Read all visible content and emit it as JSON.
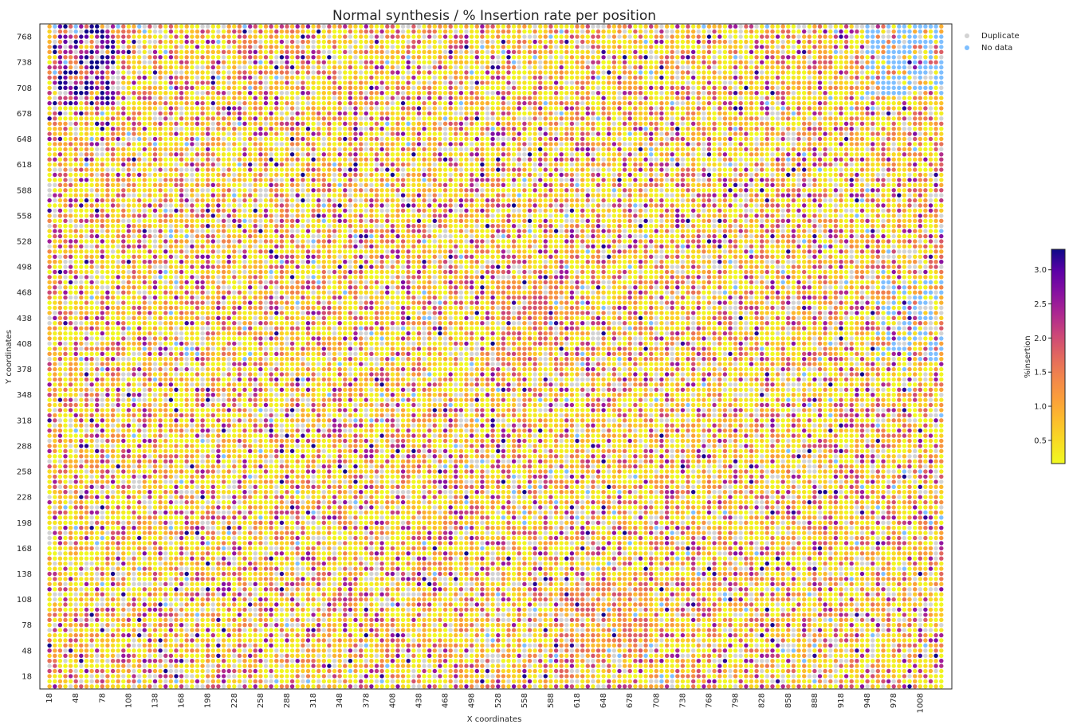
{
  "chart_data": {
    "type": "scatter",
    "title": "Normal synthesis / % Insertion rate per position",
    "xlabel": "X coordinates",
    "ylabel": "Y coordinates",
    "x_ticks": [
      18,
      48,
      78,
      108,
      138,
      168,
      198,
      228,
      258,
      288,
      318,
      348,
      378,
      408,
      438,
      468,
      498,
      528,
      558,
      588,
      618,
      648,
      678,
      708,
      738,
      768,
      798,
      828,
      858,
      888,
      918,
      948,
      978,
      1008
    ],
    "y_ticks": [
      18,
      48,
      78,
      108,
      138,
      168,
      198,
      228,
      258,
      288,
      318,
      348,
      378,
      408,
      438,
      468,
      498,
      528,
      558,
      588,
      618,
      648,
      678,
      708,
      738,
      768
    ],
    "grid_x": {
      "start": 18,
      "stop": 1035,
      "step": 6
    },
    "grid_y": {
      "start": 6,
      "stop": 780,
      "step": 6
    },
    "xlim": [
      7,
      1044
    ],
    "ylim": [
      3,
      783
    ],
    "grid": false,
    "colormap": "plasma_r",
    "colorbar": {
      "label": "%insertion",
      "min": 0.16,
      "max": 3.3,
      "ticks": [
        "0.5",
        "1.0",
        "1.5",
        "2.0",
        "2.5",
        "3.0"
      ],
      "tick_values": [
        0.5,
        1.0,
        1.5,
        2.0,
        2.5,
        3.0
      ]
    },
    "legend": {
      "placement": "top-right",
      "entries": [
        {
          "label": "Duplicate",
          "color": "#d3d3d3"
        },
        {
          "label": "No data",
          "color": "#7fbfff"
        }
      ]
    },
    "dense_regions": [
      {
        "x": [
          20,
          95
        ],
        "y": [
          690,
          780
        ],
        "mean": 2.4
      },
      {
        "x": [
          530,
          600
        ],
        "y": [
          380,
          480
        ],
        "mean": 1.3
      },
      {
        "x": [
          600,
          700
        ],
        "y": [
          40,
          130
        ],
        "mean": 1.2
      }
    ],
    "no_data_regions": [
      {
        "x": [
          945,
          1035
        ],
        "y": [
          700,
          780
        ],
        "p": 0.5
      },
      {
        "x": [
          960,
          1035
        ],
        "y": [
          390,
          480
        ],
        "p": 0.35
      }
    ]
  }
}
